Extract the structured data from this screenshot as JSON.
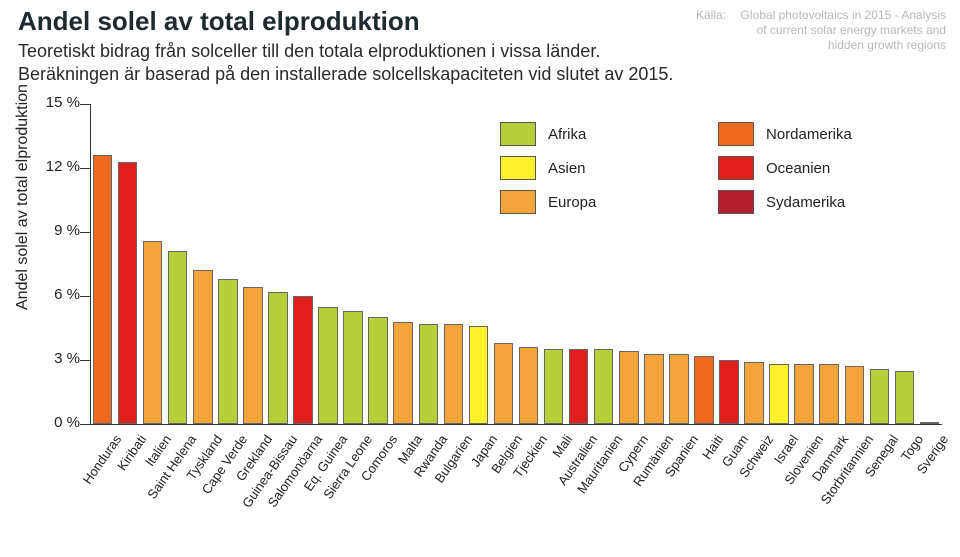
{
  "header": {
    "title": "Andel solel av total elproduktion",
    "subtitle": "Teoretiskt bidrag från solceller till den totala elproduktionen i vissa länder.\nBeräkningen är baserad på den installerade solcellskapaciteten vid slutet av 2015.",
    "source_label": "Källa:",
    "source_text": "Global photovoltaics in 2015 - Analysis of current solar energy markets and hidden growth regions"
  },
  "chart": {
    "type": "bar",
    "ylabel": "Andel solel av total elproduktion",
    "ylim": [
      0,
      15
    ],
    "ytick_step": 3,
    "ytick_suffix": " %",
    "background_color": "#ffffff",
    "axis_color": "#333333",
    "label_fontsize": 16,
    "tick_fontsize": 15,
    "xlabel_fontsize": 13,
    "xlabel_rotation_deg": -55,
    "bar_width_ratio": 0.78,
    "bar_border_color": "#666666",
    "region_colors": {
      "Afrika": "#b7cf3a",
      "Asien": "#fff12a",
      "Europa": "#f4a43a",
      "Nordamerika": "#ef6a1f",
      "Oceanien": "#e11e1e",
      "Sydamerika": "#b31e2c"
    },
    "legend": {
      "columns": 2,
      "items": [
        {
          "label": "Afrika",
          "color_key": "Afrika"
        },
        {
          "label": "Asien",
          "color_key": "Asien"
        },
        {
          "label": "Europa",
          "color_key": "Europa"
        },
        {
          "label": "Nordamerika",
          "color_key": "Nordamerika"
        },
        {
          "label": "Oceanien",
          "color_key": "Oceanien"
        },
        {
          "label": "Sydamerika",
          "color_key": "Sydamerika"
        }
      ]
    },
    "bars": [
      {
        "label": "Honduras",
        "value": 12.6,
        "region": "Nordamerika"
      },
      {
        "label": "Kiribati",
        "value": 12.3,
        "region": "Oceanien"
      },
      {
        "label": "Italien",
        "value": 8.6,
        "region": "Europa"
      },
      {
        "label": "Saint Helena",
        "value": 8.1,
        "region": "Afrika"
      },
      {
        "label": "Tyskland",
        "value": 7.2,
        "region": "Europa"
      },
      {
        "label": "Cape Verde",
        "value": 6.8,
        "region": "Afrika"
      },
      {
        "label": "Grekland",
        "value": 6.4,
        "region": "Europa"
      },
      {
        "label": "Guinea-Bissau",
        "value": 6.2,
        "region": "Afrika"
      },
      {
        "label": "Salomonöarna",
        "value": 6.0,
        "region": "Oceanien"
      },
      {
        "label": "Eq. Guinea",
        "value": 5.5,
        "region": "Afrika"
      },
      {
        "label": "Sierra Leone",
        "value": 5.3,
        "region": "Afrika"
      },
      {
        "label": "Comoros",
        "value": 5.0,
        "region": "Afrika"
      },
      {
        "label": "Malta",
        "value": 4.8,
        "region": "Europa"
      },
      {
        "label": "Rwanda",
        "value": 4.7,
        "region": "Afrika"
      },
      {
        "label": "Bulgarien",
        "value": 4.7,
        "region": "Europa"
      },
      {
        "label": "Japan",
        "value": 4.6,
        "region": "Asien"
      },
      {
        "label": "Belgien",
        "value": 3.8,
        "region": "Europa"
      },
      {
        "label": "Tjeckien",
        "value": 3.6,
        "region": "Europa"
      },
      {
        "label": "Mali",
        "value": 3.5,
        "region": "Afrika"
      },
      {
        "label": "Australien",
        "value": 3.5,
        "region": "Oceanien"
      },
      {
        "label": "Mauritanien",
        "value": 3.5,
        "region": "Afrika"
      },
      {
        "label": "Cypern",
        "value": 3.4,
        "region": "Europa"
      },
      {
        "label": "Rumänien",
        "value": 3.3,
        "region": "Europa"
      },
      {
        "label": "Spanien",
        "value": 3.3,
        "region": "Europa"
      },
      {
        "label": "Haiti",
        "value": 3.2,
        "region": "Nordamerika"
      },
      {
        "label": "Guam",
        "value": 3.0,
        "region": "Oceanien"
      },
      {
        "label": "Schweiz",
        "value": 2.9,
        "region": "Europa"
      },
      {
        "label": "Israel",
        "value": 2.8,
        "region": "Asien"
      },
      {
        "label": "Slovenien",
        "value": 2.8,
        "region": "Europa"
      },
      {
        "label": "Danmark",
        "value": 2.8,
        "region": "Europa"
      },
      {
        "label": "Storbritannien",
        "value": 2.7,
        "region": "Europa"
      },
      {
        "label": "Senegal",
        "value": 2.6,
        "region": "Afrika"
      },
      {
        "label": "Togo",
        "value": 2.5,
        "region": "Afrika"
      },
      {
        "label": "Sverige",
        "value": 0.1,
        "region": "Europa"
      }
    ]
  }
}
